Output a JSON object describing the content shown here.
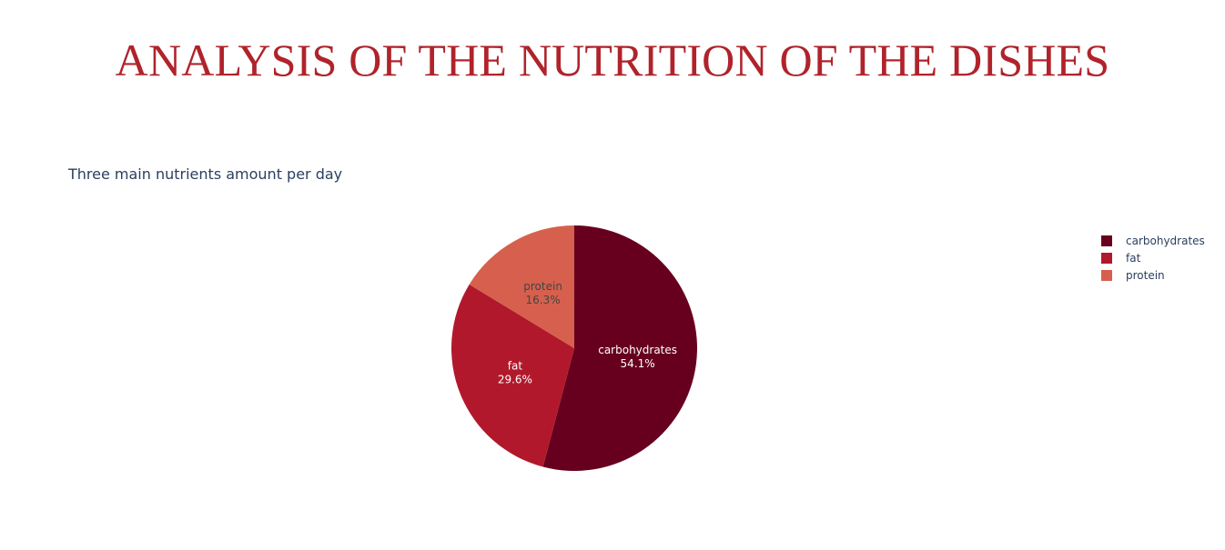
{
  "page": {
    "title": "ANALYSIS OF THE NUTRITION OF THE DISHES"
  },
  "chart_data": {
    "type": "pie",
    "title": "Three main nutrients amount per day",
    "labels": [
      "carbohydrates",
      "fat",
      "protein"
    ],
    "percent_labels": [
      "54.1%",
      "29.6%",
      "16.3%"
    ],
    "values": [
      54.1,
      29.6,
      16.3
    ],
    "colors": [
      "#67001f",
      "#b2182b",
      "#d6604d"
    ],
    "label_text_colors": [
      "#ffffff",
      "#ffffff",
      "#444444"
    ],
    "direction": "clockwise",
    "start": "top",
    "legend": {
      "placement": "top-right",
      "items": [
        {
          "label": "carbohydrates",
          "color": "#67001f"
        },
        {
          "label": "fat",
          "color": "#b2182b"
        },
        {
          "label": "protein",
          "color": "#d6604d"
        }
      ]
    }
  }
}
